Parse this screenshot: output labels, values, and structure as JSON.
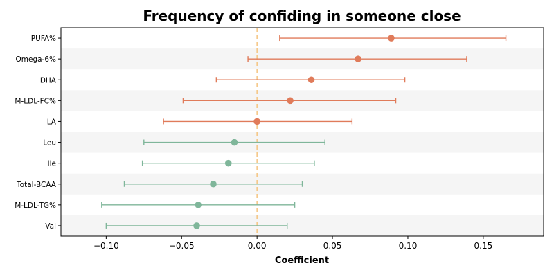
{
  "chart_data": {
    "type": "scatter",
    "title": "Frequency of confiding in someone close",
    "xlabel": "Coefficient",
    "ylabel": "",
    "xlim": [
      -0.13,
      0.19
    ],
    "xticks": [
      -0.1,
      -0.05,
      0.0,
      0.05,
      0.1,
      0.15
    ],
    "xtick_labels": [
      "−0.10",
      "−0.05",
      "0.00",
      "0.05",
      "0.10",
      "0.15"
    ],
    "reference_line": 0,
    "grid": false,
    "colors": {
      "positive": "#e07b5a",
      "negative": "#7fb69a",
      "reference": "#f5c580",
      "band": "#f5f5f5"
    },
    "points": [
      {
        "label": "PUFA%",
        "estimate": 0.089,
        "ci_low": 0.015,
        "ci_high": 0.165
      },
      {
        "label": "Omega-6%",
        "estimate": 0.067,
        "ci_low": -0.006,
        "ci_high": 0.139
      },
      {
        "label": "DHA",
        "estimate": 0.036,
        "ci_low": -0.027,
        "ci_high": 0.098
      },
      {
        "label": "M-LDL-FC%",
        "estimate": 0.022,
        "ci_low": -0.049,
        "ci_high": 0.092
      },
      {
        "label": "LA",
        "estimate": 0.0,
        "ci_low": -0.062,
        "ci_high": 0.063
      },
      {
        "label": "Leu",
        "estimate": -0.015,
        "ci_low": -0.075,
        "ci_high": 0.045
      },
      {
        "label": "Ile",
        "estimate": -0.019,
        "ci_low": -0.076,
        "ci_high": 0.038
      },
      {
        "label": "Total-BCAA",
        "estimate": -0.029,
        "ci_low": -0.088,
        "ci_high": 0.03
      },
      {
        "label": "M-LDL-TG%",
        "estimate": -0.039,
        "ci_low": -0.103,
        "ci_high": 0.025
      },
      {
        "label": "Val",
        "estimate": -0.04,
        "ci_low": -0.1,
        "ci_high": 0.02
      }
    ]
  }
}
